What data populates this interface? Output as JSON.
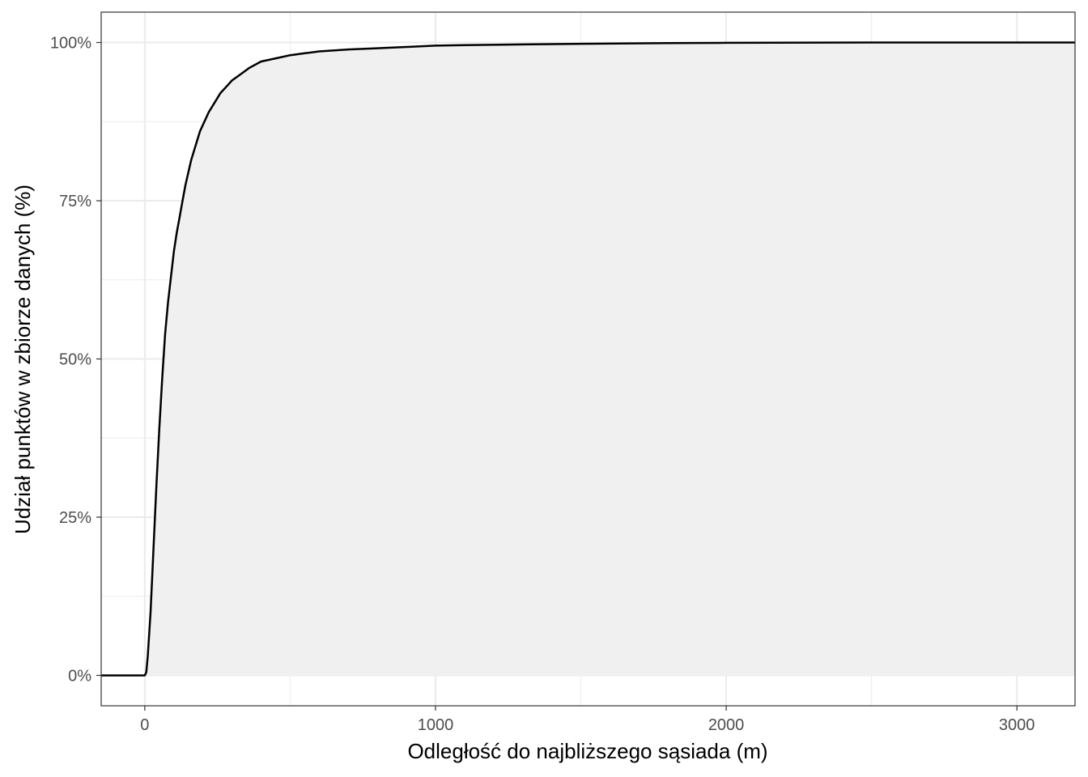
{
  "chart_data": {
    "type": "area",
    "title": "",
    "xlabel": "Odległość do najbliższego sąsiada (m)",
    "ylabel": "Udział punktów w zbiorze danych (%)",
    "xlim": [
      -150,
      3200
    ],
    "ylim": [
      -0.048,
      1.048
    ],
    "x_ticks": [
      0,
      1000,
      2000,
      3000
    ],
    "x_tick_labels": [
      "0",
      "1000",
      "2000",
      "3000"
    ],
    "y_ticks": [
      0,
      0.25,
      0.5,
      0.75,
      1.0
    ],
    "y_tick_labels": [
      "0%",
      "25%",
      "50%",
      "75%",
      "100%"
    ],
    "grid": true,
    "legend": "none",
    "colors": {
      "line": "#000000",
      "fill": "#f0f0f0",
      "grid": "#ebebeb",
      "panel_border": "#333333"
    },
    "series": [
      {
        "x": [
          -150,
          0,
          5,
          10,
          20,
          30,
          40,
          50,
          60,
          70,
          80,
          90,
          100,
          110,
          120,
          130,
          140,
          150,
          160,
          170,
          180,
          190,
          200,
          220,
          240,
          260,
          280,
          300,
          330,
          360,
          400,
          450,
          500,
          550,
          600,
          700,
          800,
          900,
          1000,
          1100,
          1300,
          1500,
          1800,
          2000,
          2500,
          3000,
          3200
        ],
        "y": [
          0,
          0,
          0.005,
          0.03,
          0.1,
          0.2,
          0.3,
          0.39,
          0.47,
          0.54,
          0.59,
          0.63,
          0.67,
          0.7,
          0.725,
          0.75,
          0.775,
          0.795,
          0.815,
          0.83,
          0.845,
          0.86,
          0.87,
          0.89,
          0.905,
          0.92,
          0.93,
          0.94,
          0.95,
          0.96,
          0.97,
          0.975,
          0.98,
          0.983,
          0.986,
          0.989,
          0.991,
          0.993,
          0.995,
          0.996,
          0.997,
          0.998,
          0.999,
          0.9995,
          1.0,
          1.0,
          1.0
        ]
      }
    ]
  }
}
